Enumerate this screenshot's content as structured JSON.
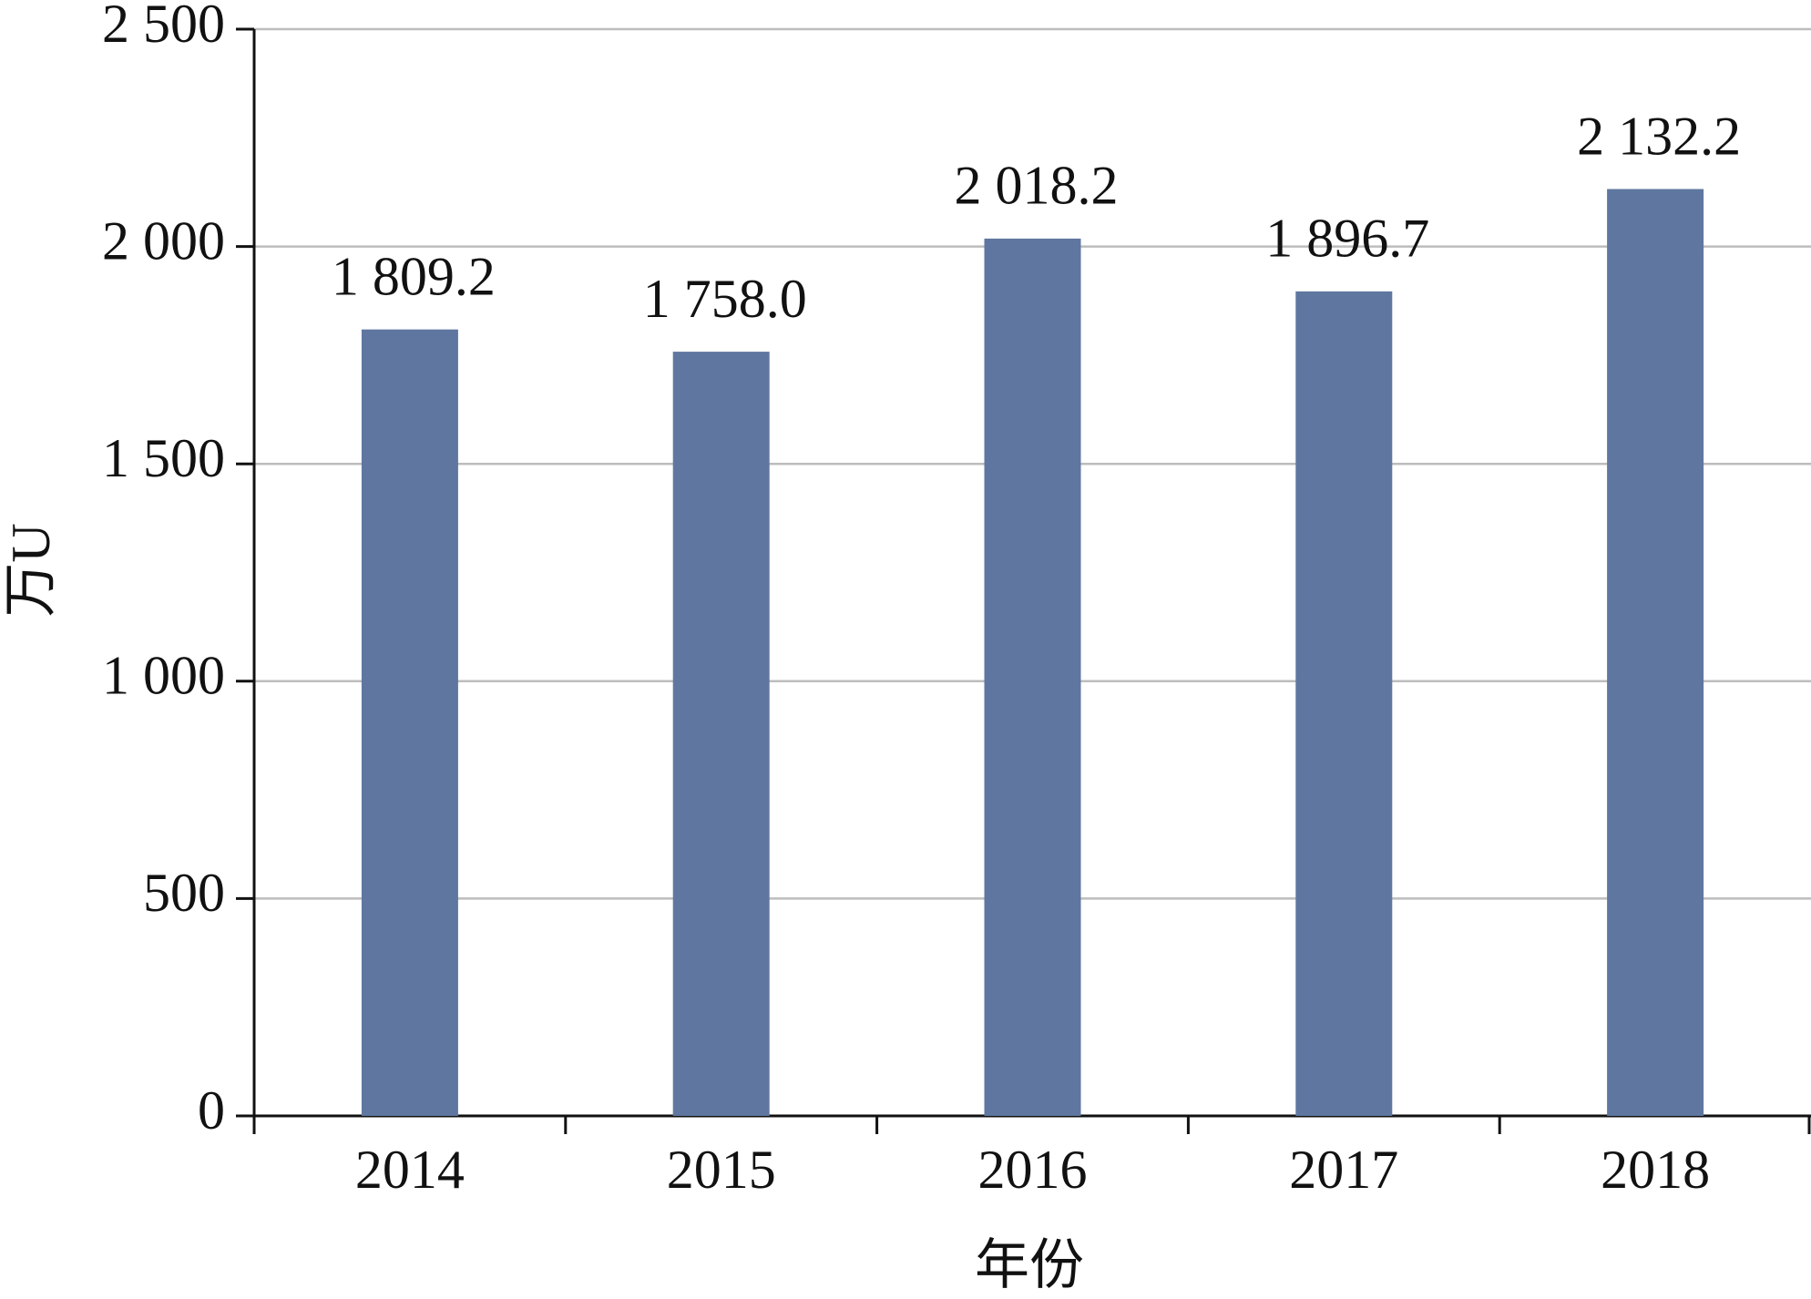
{
  "chart_data": {
    "type": "bar",
    "categories": [
      "2014",
      "2015",
      "2016",
      "2017",
      "2018"
    ],
    "values": [
      1809.2,
      1758.0,
      2018.2,
      1896.7,
      2132.2
    ],
    "value_labels": [
      "1 809.2",
      "1 758.0",
      "2 018.2",
      "1 896.7",
      "2 132.2"
    ],
    "color": "#5f77a0",
    "y_label": "万U",
    "x_label": "年份",
    "ylim": [
      0,
      2500
    ],
    "yticks": [
      0,
      500,
      {
        "value": 1000,
        "label": "1 000"
      },
      {
        "value": 1500,
        "label": "1 500"
      },
      {
        "value": 2000,
        "label": "2 000"
      },
      {
        "value": 2500,
        "label": "2 500"
      }
    ],
    "grid": true
  }
}
